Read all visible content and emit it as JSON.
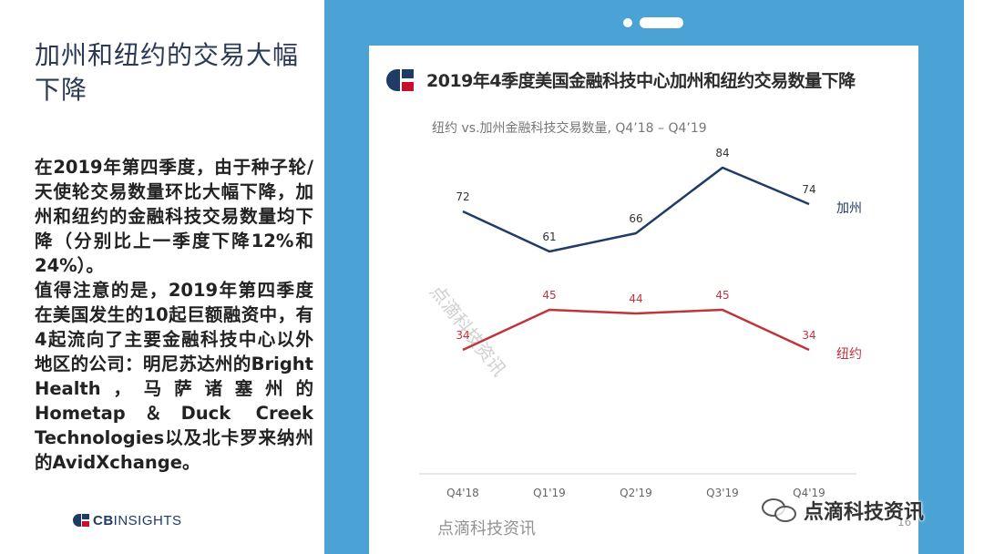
{
  "left": {
    "heading": "加州和纽约的交易大幅下降",
    "paragraphs": [
      "在2019年第四季度，由于种子轮/天使轮交易数量环比大幅下降，加州和纽约的金融科技交易数量均下降（分别比上一季度下降12%和24%）。",
      "值得注意的是，2019年第四季度在美国发生的10起巨额融资中，有4起流向了主要金融科技中心以外地区的公司：明尼苏达州的Bright Health，马萨诸塞州的Hometap＆Duck Creek Technologies以及北卡罗来纳州的AvidXchange。"
    ],
    "logo_bold": "CB",
    "logo_rest": "INSIGHTS"
  },
  "watermark": {
    "diagonal": "点滴科技资讯",
    "bottom": "点滴科技资讯",
    "wechat_label": "点滴科技资讯"
  },
  "page_number": "16",
  "colors": {
    "frame": "#4aa3d4",
    "california": "#1f3b66",
    "new_york": "#c0343c",
    "brand_navy": "#1f3b66",
    "brand_red": "#c8102e"
  },
  "chart_data": {
    "type": "line",
    "title": "2019年4季度美国金融科技中心加州和纽约交易数量下降",
    "subtitle": "纽约 vs.加州金融科技交易数量, Q4’18 – Q4’19",
    "categories": [
      "Q4'18",
      "Q1'19",
      "Q2'19",
      "Q3'19",
      "Q4'19"
    ],
    "series": [
      {
        "name": "加州",
        "values": [
          72,
          61,
          66,
          84,
          74
        ]
      },
      {
        "name": "纽约",
        "values": [
          34,
          45,
          44,
          45,
          34
        ]
      }
    ],
    "ylim": [
      0,
      100
    ],
    "grid": false,
    "legend": "right, inline at line ends"
  }
}
